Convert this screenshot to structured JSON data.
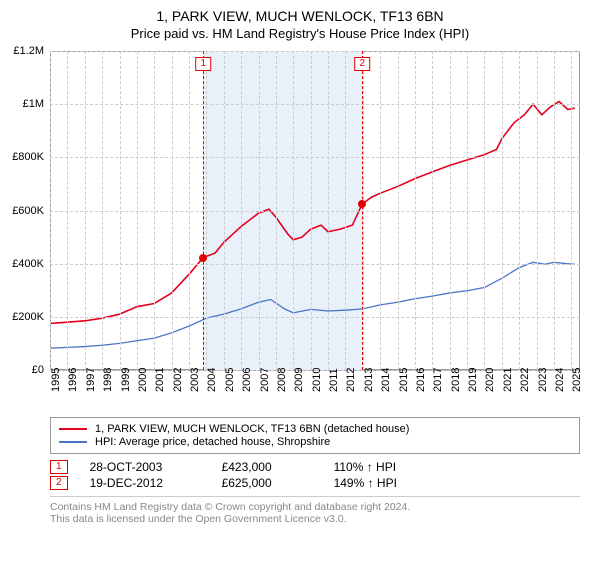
{
  "title": "1, PARK VIEW, MUCH WENLOCK, TF13 6BN",
  "subtitle": "Price paid vs. HM Land Registry's House Price Index (HPI)",
  "chart": {
    "ylim": [
      0,
      1200000
    ],
    "yticks": [
      {
        "v": 0,
        "label": "£0"
      },
      {
        "v": 200000,
        "label": "£200K"
      },
      {
        "v": 400000,
        "label": "£400K"
      },
      {
        "v": 600000,
        "label": "£600K"
      },
      {
        "v": 800000,
        "label": "£800K"
      },
      {
        "v": 1000000,
        "label": "£1M"
      },
      {
        "v": 1200000,
        "label": "£1.2M"
      }
    ],
    "xlim": [
      1995,
      2025.5
    ],
    "xticks": [
      1995,
      1996,
      1997,
      1998,
      1999,
      2000,
      2001,
      2002,
      2003,
      2004,
      2005,
      2006,
      2007,
      2008,
      2009,
      2010,
      2011,
      2012,
      2013,
      2014,
      2015,
      2016,
      2017,
      2018,
      2019,
      2020,
      2021,
      2022,
      2023,
      2024,
      2025
    ],
    "band": {
      "from": 2003.82,
      "to": 2012.97,
      "fill": "#e8f0fa"
    },
    "grid_color": "#cccccc",
    "series1": {
      "label": "1, PARK VIEW, MUCH WENLOCK, TF13 6BN (detached house)",
      "color": "#e6001f",
      "width": 1.6,
      "points": [
        [
          1995,
          175000
        ],
        [
          1996,
          180000
        ],
        [
          1997,
          185000
        ],
        [
          1998,
          195000
        ],
        [
          1999,
          210000
        ],
        [
          2000,
          238000
        ],
        [
          2001,
          250000
        ],
        [
          2002,
          290000
        ],
        [
          2003,
          360000
        ],
        [
          2003.82,
          423000
        ],
        [
          2004.5,
          440000
        ],
        [
          2005,
          480000
        ],
        [
          2006,
          540000
        ],
        [
          2007,
          590000
        ],
        [
          2007.6,
          605000
        ],
        [
          2008,
          575000
        ],
        [
          2008.7,
          510000
        ],
        [
          2009,
          490000
        ],
        [
          2009.5,
          500000
        ],
        [
          2010,
          530000
        ],
        [
          2010.6,
          545000
        ],
        [
          2011,
          520000
        ],
        [
          2011.7,
          530000
        ],
        [
          2012.4,
          545000
        ],
        [
          2012.97,
          625000
        ],
        [
          2013.5,
          650000
        ],
        [
          2014,
          665000
        ],
        [
          2015,
          690000
        ],
        [
          2016,
          720000
        ],
        [
          2017,
          745000
        ],
        [
          2018,
          770000
        ],
        [
          2019,
          790000
        ],
        [
          2020,
          810000
        ],
        [
          2020.7,
          830000
        ],
        [
          2021,
          870000
        ],
        [
          2021.7,
          930000
        ],
        [
          2022.3,
          960000
        ],
        [
          2022.8,
          1000000
        ],
        [
          2023.3,
          960000
        ],
        [
          2023.8,
          990000
        ],
        [
          2024.3,
          1010000
        ],
        [
          2024.8,
          980000
        ],
        [
          2025.2,
          985000
        ]
      ]
    },
    "series2": {
      "label": "HPI: Average price, detached house, Shropshire",
      "color": "#4a74c9",
      "width": 1.3,
      "points": [
        [
          1995,
          82000
        ],
        [
          1996,
          85000
        ],
        [
          1997,
          88000
        ],
        [
          1998,
          93000
        ],
        [
          1999,
          100000
        ],
        [
          2000,
          110000
        ],
        [
          2001,
          120000
        ],
        [
          2002,
          140000
        ],
        [
          2003,
          165000
        ],
        [
          2004,
          195000
        ],
        [
          2005,
          210000
        ],
        [
          2006,
          230000
        ],
        [
          2007,
          255000
        ],
        [
          2007.7,
          265000
        ],
        [
          2008.5,
          230000
        ],
        [
          2009,
          215000
        ],
        [
          2010,
          228000
        ],
        [
          2011,
          222000
        ],
        [
          2012,
          225000
        ],
        [
          2013,
          230000
        ],
        [
          2014,
          245000
        ],
        [
          2015,
          255000
        ],
        [
          2016,
          268000
        ],
        [
          2017,
          278000
        ],
        [
          2018,
          290000
        ],
        [
          2019,
          298000
        ],
        [
          2020,
          310000
        ],
        [
          2021,
          345000
        ],
        [
          2022,
          385000
        ],
        [
          2022.8,
          405000
        ],
        [
          2023.5,
          398000
        ],
        [
          2024,
          405000
        ],
        [
          2024.7,
          400000
        ],
        [
          2025.2,
          398000
        ]
      ]
    },
    "markers": [
      {
        "x": 2003.82,
        "y": 423000,
        "tag": "1"
      },
      {
        "x": 2012.97,
        "y": 625000,
        "tag": "2"
      }
    ]
  },
  "legend": {
    "rows": [
      {
        "color": "#e6001f",
        "label_path": "chart.series1.label"
      },
      {
        "color": "#4a74c9",
        "label_path": "chart.series2.label"
      }
    ]
  },
  "events": [
    {
      "tag": "1",
      "date": "28-OCT-2003",
      "price": "£423,000",
      "pct": "110% ↑ HPI"
    },
    {
      "tag": "2",
      "date": "19-DEC-2012",
      "price": "£625,000",
      "pct": "149% ↑ HPI"
    }
  ],
  "footer_line1": "Contains HM Land Registry data © Crown copyright and database right 2024.",
  "footer_line2": "This data is licensed under the Open Government Licence v3.0."
}
